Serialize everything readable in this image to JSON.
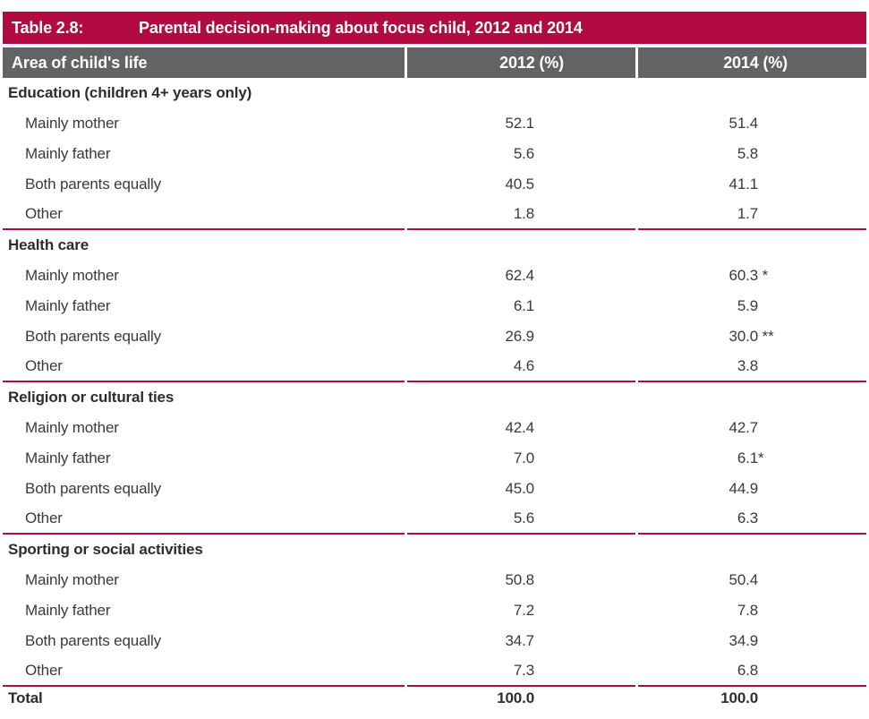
{
  "colors": {
    "accent_crimson": "#B10B41",
    "header_gray": "#636366",
    "header_text": "#FFFFFF",
    "body_text": "#3A3A3C"
  },
  "table": {
    "number_label": "Table 2.8:",
    "title": "Parental decision-making about focus child, 2012 and 2014",
    "columns": {
      "area": "Area of child's life",
      "y2012": "2012 (%)",
      "y2014": "2014 (%)"
    },
    "sections": [
      {
        "header": "Education (children 4+ years only)",
        "rows": [
          {
            "label": "Mainly mother",
            "v2012": "52.1",
            "s2012": "",
            "v2014": "51.4",
            "s2014": ""
          },
          {
            "label": "Mainly father",
            "v2012": "5.6",
            "s2012": "",
            "v2014": "5.8",
            "s2014": ""
          },
          {
            "label": "Both parents equally",
            "v2012": "40.5",
            "s2012": "",
            "v2014": "41.1",
            "s2014": ""
          },
          {
            "label": "Other",
            "v2012": "1.8",
            "s2012": "",
            "v2014": "1.7",
            "s2014": ""
          }
        ]
      },
      {
        "header": "Health care",
        "rows": [
          {
            "label": "Mainly mother",
            "v2012": "62.4",
            "s2012": "",
            "v2014": "60.3",
            "s2014": " *"
          },
          {
            "label": "Mainly father",
            "v2012": "6.1",
            "s2012": "",
            "v2014": "5.9",
            "s2014": ""
          },
          {
            "label": "Both parents equally",
            "v2012": "26.9",
            "s2012": "",
            "v2014": "30.0",
            "s2014": " **"
          },
          {
            "label": "Other",
            "v2012": "4.6",
            "s2012": "",
            "v2014": "3.8",
            "s2014": ""
          }
        ]
      },
      {
        "header": "Religion or cultural ties",
        "rows": [
          {
            "label": "Mainly mother",
            "v2012": "42.4",
            "s2012": "",
            "v2014": "42.7",
            "s2014": ""
          },
          {
            "label": "Mainly father",
            "v2012": "7.0",
            "s2012": "",
            "v2014": "6.1",
            "s2014": "*"
          },
          {
            "label": "Both parents equally",
            "v2012": "45.0",
            "s2012": "",
            "v2014": "44.9",
            "s2014": ""
          },
          {
            "label": "Other",
            "v2012": "5.6",
            "s2012": "",
            "v2014": "6.3",
            "s2014": ""
          }
        ]
      },
      {
        "header": "Sporting or social activities",
        "rows": [
          {
            "label": "Mainly mother",
            "v2012": "50.8",
            "s2012": "",
            "v2014": "50.4",
            "s2014": ""
          },
          {
            "label": "Mainly father",
            "v2012": "7.2",
            "s2012": "",
            "v2014": "7.8",
            "s2014": ""
          },
          {
            "label": "Both parents equally",
            "v2012": "34.7",
            "s2012": "",
            "v2014": "34.9",
            "s2014": ""
          },
          {
            "label": "Other",
            "v2012": "7.3",
            "s2012": "",
            "v2014": "6.8",
            "s2014": ""
          }
        ]
      }
    ],
    "total": {
      "label": "Total",
      "v2012": "100.0",
      "s2012": "",
      "v2014": "100.0",
      "s2014": ""
    }
  }
}
